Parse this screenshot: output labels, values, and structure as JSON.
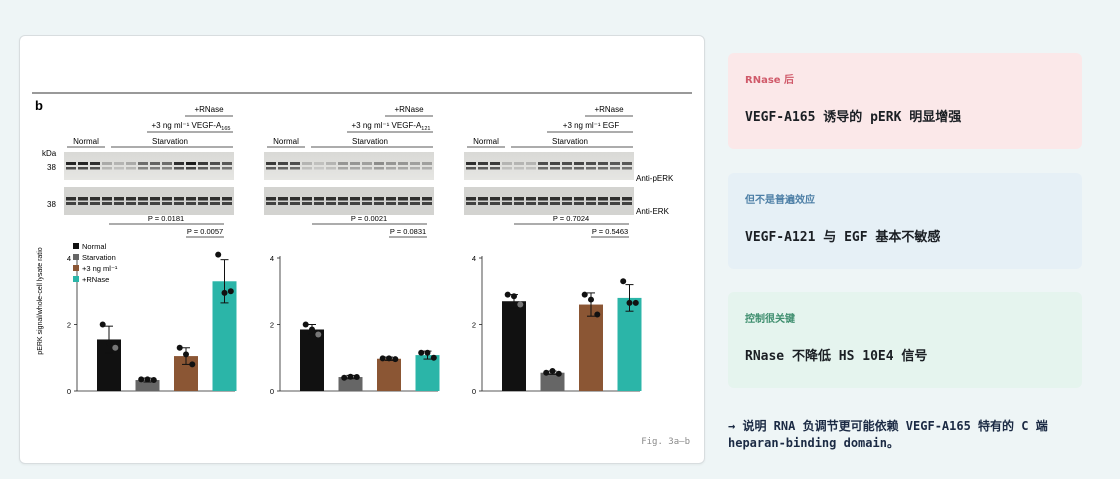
{
  "panel_label": "b",
  "caption": "Fig. 3a–b",
  "kda_label": "kDa",
  "marker_label": "38",
  "blot_labels": {
    "perk": "Anti-pERK",
    "erk": "Anti-ERK"
  },
  "legend": [
    "Normal",
    "Starvation",
    "+3 ng ml⁻¹",
    "+RNase"
  ],
  "ylabel": "pERK signal/whole-cell lysate ratio",
  "colors": {
    "normal": "#111111",
    "starvation": "#666666",
    "treatment": "#8b5634",
    "rnase": "#2bb5a8"
  },
  "blot_groups": [
    {
      "rnase_label": "+RNase",
      "treatment_label": "+3 ng ml⁻¹ VEGF-A",
      "treatment_sub": "165",
      "normal_label": "Normal",
      "starvation_label": "Starvation"
    },
    {
      "rnase_label": "+RNase",
      "treatment_label": "+3 ng ml⁻¹ VEGF-A",
      "treatment_sub": "121",
      "normal_label": "Normal",
      "starvation_label": "Starvation"
    },
    {
      "rnase_label": "+RNase",
      "treatment_label": "+3 ng ml⁻¹ EGF",
      "treatment_sub": "",
      "normal_label": "Normal",
      "starvation_label": "Starvation"
    }
  ],
  "chart_data": [
    {
      "type": "bar",
      "categories": [
        "Normal",
        "Starvation",
        "+3 ng ml⁻¹",
        "+RNase"
      ],
      "values": [
        1.55,
        0.33,
        1.05,
        3.3
      ],
      "errors": [
        0.4,
        0.06,
        0.25,
        0.65
      ],
      "points": [
        [
          2.0,
          1.3,
          1.45
        ],
        [
          0.35,
          0.33,
          0.35
        ],
        [
          1.3,
          0.8,
          1.1
        ],
        [
          4.1,
          3.0,
          2.95
        ]
      ],
      "ylim": [
        0,
        4
      ],
      "yticks": [
        0,
        2,
        4
      ],
      "p_values": [
        "P = 0.0181",
        "P = 0.0057"
      ]
    },
    {
      "type": "bar",
      "categories": [
        "Normal",
        "Starvation",
        "+3 ng ml⁻¹",
        "+RNase"
      ],
      "values": [
        1.85,
        0.42,
        0.97,
        1.08
      ],
      "errors": [
        0.15,
        0.05,
        0.05,
        0.12
      ],
      "points": [
        [
          2.0,
          1.7,
          1.85
        ],
        [
          0.4,
          0.42,
          0.43
        ],
        [
          0.98,
          0.96,
          0.98
        ],
        [
          1.15,
          1.0,
          1.15
        ]
      ],
      "ylim": [
        0,
        4
      ],
      "yticks": [
        0,
        2,
        4
      ],
      "p_values": [
        "P = 0.0021",
        "P = 0.0831"
      ]
    },
    {
      "type": "bar",
      "categories": [
        "Normal",
        "Starvation",
        "+3 ng ml⁻¹",
        "+RNase"
      ],
      "values": [
        2.7,
        0.55,
        2.6,
        2.8
      ],
      "errors": [
        0.2,
        0.05,
        0.35,
        0.4
      ],
      "points": [
        [
          2.9,
          2.6,
          2.85
        ],
        [
          0.55,
          0.52,
          0.6
        ],
        [
          2.9,
          2.3,
          2.75
        ],
        [
          3.3,
          2.65,
          2.65
        ]
      ],
      "ylim": [
        0,
        4
      ],
      "yticks": [
        0,
        2,
        4
      ],
      "p_values": [
        "P = 0.7024",
        "P = 0.5463"
      ]
    }
  ],
  "notes": [
    {
      "tag": "RNase 后",
      "body": "VEGF-A165 诱导的 pERK 明显增强"
    },
    {
      "tag": "但不是普遍效应",
      "body": "VEGF-A121 与 EGF 基本不敏感"
    },
    {
      "tag": "控制很关键",
      "body": "RNase 不降低 HS 10E4 信号"
    }
  ],
  "footer_note": "→ 说明 RNA 负调节更可能依赖 VEGF-A165 特有的 C 端 heparan-binding domain。"
}
